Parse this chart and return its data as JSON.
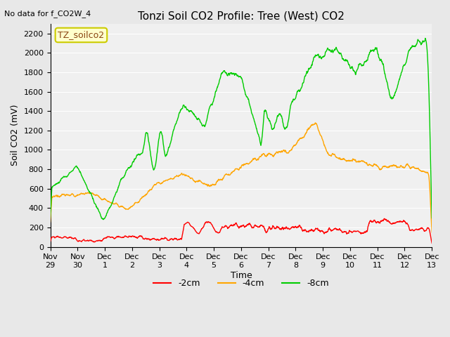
{
  "title": "Tonzi Soil CO2 Profile: Tree (West) CO2",
  "no_data_label": "No data for f_CO2W_4",
  "dataset_label": "TZ_soilco2",
  "ylabel": "Soil CO2 (mV)",
  "xlabel": "Time",
  "ylim": [
    0,
    2300
  ],
  "yticks": [
    0,
    200,
    400,
    600,
    800,
    1000,
    1200,
    1400,
    1600,
    1800,
    2000,
    2200
  ],
  "xtick_labels": [
    "Nov 29",
    "Nov 30",
    "Dec 1",
    "Dec 2",
    "Dec 3",
    "Dec 4",
    "Dec 5",
    "Dec 6",
    "Dec 7",
    "Dec 8",
    "Dec 9",
    "Dec 10",
    "Dec 11",
    "Dec 12",
    "Dec 13"
  ],
  "colors": {
    "red": "#FF0000",
    "orange": "#FFA500",
    "green": "#00CC00",
    "bg": "#E8E8E8",
    "plot_bg": "#F0F0F0",
    "legend_bg": "#FFFFCC",
    "legend_border": "#CCCC00"
  },
  "legend": [
    {
      "label": "-2cm",
      "color": "#FF0000"
    },
    {
      "label": "-4cm",
      "color": "#FFA500"
    },
    {
      "label": "-8cm",
      "color": "#00CC00"
    }
  ]
}
